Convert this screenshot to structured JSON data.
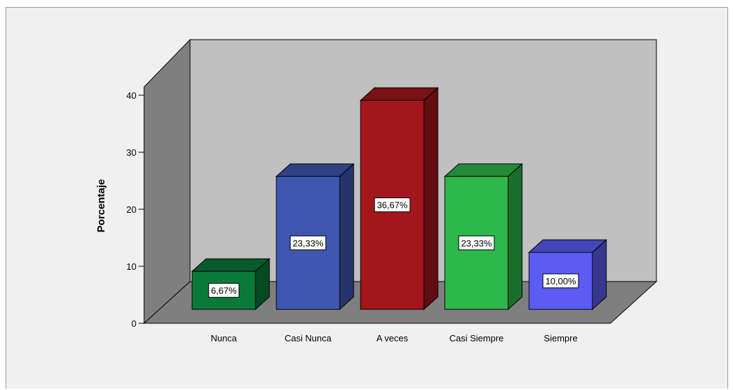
{
  "chart_data": {
    "type": "bar",
    "style": "3d",
    "categories": [
      "Nunca",
      "Casi Nunca",
      "A veces",
      "Casi Siempre",
      "Siempre"
    ],
    "values": [
      6.67,
      23.33,
      36.67,
      23.33,
      10.0
    ],
    "data_labels": [
      "6,67%",
      "23,33%",
      "36,67%",
      "23,33%",
      "10,00%"
    ],
    "colors": [
      "#0a7a3a",
      "#3d56b0",
      "#a3161b",
      "#2db84a",
      "#5b5cf4"
    ],
    "ylabel": "Porcentaje",
    "xlabel": "",
    "ylim": [
      0,
      40
    ],
    "yticks": [
      0,
      10,
      20,
      30,
      40
    ],
    "grid": false,
    "legend": "none"
  },
  "colors": {
    "background": "#f0f0f0",
    "back_wall": "#c0c0c0",
    "side_wall": "#7f7f7f",
    "floor": "#7f7f7f"
  }
}
